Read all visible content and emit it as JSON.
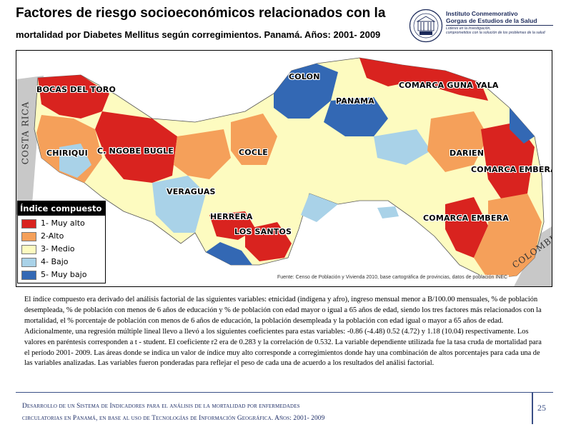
{
  "slide": {
    "title_line1": "Factores de riesgo socioeconómicos relacionados con la",
    "title_line2": "mortalidad por Diabetes Mellitus según corregimientos. Panamá. Años: 2001- 2009"
  },
  "logo": {
    "name_line1": "Instituto Conmemorativo",
    "name_line2": "Gorgas de Estudios de la Salud",
    "tagline_line1": "Líderes en la investigación,",
    "tagline_line2": "comprometidos con la solución de los problemas de la salud",
    "seal_year": "1928",
    "seal_icon": "gorgas-institute-seal-icon"
  },
  "map": {
    "regions": {
      "bocas": "BOCAS DEL TORO",
      "colon": "COLON",
      "guna": "COMARCA GUNA YALA",
      "panama": "PANAMA",
      "chiriqui": "CHIRIQUI",
      "ngobe": "C. NGOBE BUGLE",
      "cocle": "COCLE",
      "darien": "DARIEN",
      "embera1": "COMARCA EMBERA",
      "veraguas": "VERAGUAS",
      "herrera": "HERRERA",
      "lossantos": "LOS SANTOS",
      "embera2": "COMARCA EMBERA"
    },
    "countries": {
      "west": "COSTA RICA",
      "east": "COLOMBIA"
    },
    "source": "Fuente: Censo de Población y Vivienda 2010, base cartográfica de provincias, datos de población INEC",
    "colors": {
      "muy_alto": "#d9231f",
      "alto": "#f5a05a",
      "medio": "#fdfbc0",
      "bajo": "#a9d2e8",
      "muy_bajo": "#3368b4",
      "neighbor": "#c8c8c8"
    }
  },
  "legend": {
    "title": "Índice compuesto",
    "items": [
      {
        "label": "1- Muy alto",
        "color": "#d9231f"
      },
      {
        "label": "2-Alto",
        "color": "#f5a05a"
      },
      {
        "label": "3- Medio",
        "color": "#fdfbc0"
      },
      {
        "label": "4- Bajo",
        "color": "#a9d2e8"
      },
      {
        "label": "5- Muy bajo",
        "color": "#3368b4"
      }
    ]
  },
  "body": {
    "paragraph": "El índice compuesto era derivado del análisis factorial de las siguientes variables: etnicidad (indígena y afro), ingreso mensual menor a B/100.00 mensuales, % de población desempleada, % de población con menos de 6 años de educación y % de población con edad mayor o igual a 65 años de edad, siendo los tres factores más relacionados con la mortalidad, el % porcentaje de población con menos de 6 años de educación, la población desempleada y la población con edad igual o mayor a 65 años de edad. Adicionalmente, una regresión múltiple lineal llevo a llevó a los siguientes coeficientes para estas variables: -0.86 (-4.48) 0.52 (4.72) y 1.18 (10.04) respectivamente. Los valores en paréntesis corresponden a t - student. El coeficiente r2 era de 0.283 y la correlación de 0.532. La variable dependiente utilizada fue la tasa cruda de mortalidad para el período 2001- 2009. Las áreas donde se indica un valor de índice muy alto corresponde a corregimientos donde hay una combinación de altos porcentajes para cada una de las variables analizadas. Las variables fueron ponderadas para reflejar el peso de cada una de acuerdo a los resultados del análisi factorial."
  },
  "footer": {
    "line1": "Desarrollo de un Sistema de Indicadores para el análisis de la mortalidad por enfermedades",
    "line2": "circulatorias en Panamá, en base al uso de Tecnologías de Información Geográfica. Años: 2001- 2009",
    "page": "25"
  }
}
